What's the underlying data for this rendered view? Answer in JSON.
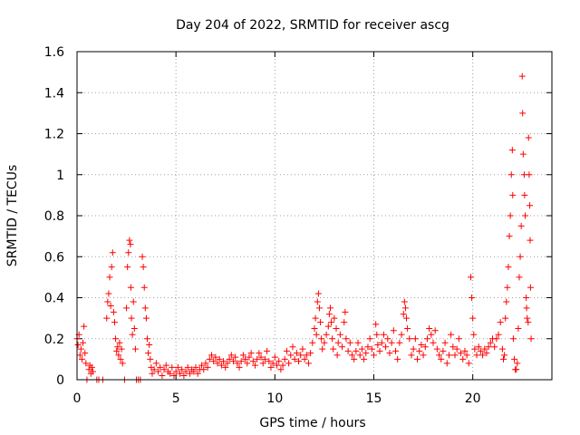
{
  "chart_data": {
    "type": "scatter",
    "title": "Day 204 of 2022, SRMTID for receiver ascg",
    "xlabel": "GPS time / hours",
    "ylabel": "SRMTID / TECUs",
    "xlim": [
      0,
      24
    ],
    "ylim": [
      0,
      1.6
    ],
    "xticks": [
      0,
      5,
      10,
      15,
      20
    ],
    "xtick_labels": [
      "0",
      "5",
      "10",
      "15",
      "20"
    ],
    "yticks": [
      0,
      0.2,
      0.4,
      0.6,
      0.8,
      1,
      1.2,
      1.4,
      1.6
    ],
    "ytick_labels": [
      "0",
      "0.2",
      "0.4",
      "0.6",
      "0.8",
      "1",
      "1.2",
      "1.4",
      "1.6"
    ],
    "grid": true,
    "marker": "+",
    "series": [
      {
        "name": "SRMTID",
        "color": "#ff0000",
        "points": [
          [
            0.0,
            0.2
          ],
          [
            0.05,
            0.17
          ],
          [
            0.1,
            0.22
          ],
          [
            0.15,
            0.12
          ],
          [
            0.2,
            0.15
          ],
          [
            0.25,
            0.1
          ],
          [
            0.3,
            0.18
          ],
          [
            0.35,
            0.26
          ],
          [
            0.4,
            0.13
          ],
          [
            0.45,
            0.08
          ],
          [
            0.5,
            0.0
          ],
          [
            0.6,
            0.05
          ],
          [
            0.65,
            0.07
          ],
          [
            0.7,
            0.03
          ],
          [
            0.75,
            0.06
          ],
          [
            0.8,
            0.04
          ],
          [
            1.0,
            0.0
          ],
          [
            1.1,
            0.0
          ],
          [
            1.3,
            0.0
          ],
          [
            1.5,
            0.3
          ],
          [
            1.55,
            0.38
          ],
          [
            1.6,
            0.42
          ],
          [
            1.65,
            0.5
          ],
          [
            1.7,
            0.36
          ],
          [
            1.75,
            0.55
          ],
          [
            1.8,
            0.62
          ],
          [
            1.85,
            0.33
          ],
          [
            1.9,
            0.28
          ],
          [
            1.95,
            0.2
          ],
          [
            2.0,
            0.14
          ],
          [
            2.05,
            0.16
          ],
          [
            2.1,
            0.12
          ],
          [
            2.15,
            0.18
          ],
          [
            2.2,
            0.1
          ],
          [
            2.25,
            0.15
          ],
          [
            2.3,
            0.08
          ],
          [
            2.4,
            0.0
          ],
          [
            2.5,
            0.35
          ],
          [
            2.55,
            0.55
          ],
          [
            2.6,
            0.62
          ],
          [
            2.65,
            0.68
          ],
          [
            2.7,
            0.66
          ],
          [
            2.72,
            0.45
          ],
          [
            2.75,
            0.3
          ],
          [
            2.8,
            0.22
          ],
          [
            2.85,
            0.38
          ],
          [
            2.9,
            0.25
          ],
          [
            2.95,
            0.15
          ],
          [
            3.0,
            0.0
          ],
          [
            3.1,
            0.0
          ],
          [
            3.2,
            0.0
          ],
          [
            3.3,
            0.6
          ],
          [
            3.35,
            0.55
          ],
          [
            3.4,
            0.45
          ],
          [
            3.45,
            0.35
          ],
          [
            3.5,
            0.3
          ],
          [
            3.55,
            0.2
          ],
          [
            3.6,
            0.13
          ],
          [
            3.65,
            0.17
          ],
          [
            3.7,
            0.1
          ],
          [
            3.75,
            0.06
          ],
          [
            3.8,
            0.03
          ],
          [
            3.9,
            0.05
          ],
          [
            4.0,
            0.08
          ],
          [
            4.1,
            0.04
          ],
          [
            4.2,
            0.06
          ],
          [
            4.3,
            0.02
          ],
          [
            4.4,
            0.05
          ],
          [
            4.5,
            0.07
          ],
          [
            4.6,
            0.04
          ],
          [
            4.7,
            0.03
          ],
          [
            4.8,
            0.06
          ],
          [
            4.9,
            0.02
          ],
          [
            5.0,
            0.04
          ],
          [
            5.1,
            0.06
          ],
          [
            5.2,
            0.03
          ],
          [
            5.3,
            0.05
          ],
          [
            5.4,
            0.02
          ],
          [
            5.5,
            0.04
          ],
          [
            5.6,
            0.06
          ],
          [
            5.7,
            0.03
          ],
          [
            5.8,
            0.05
          ],
          [
            5.9,
            0.04
          ],
          [
            6.0,
            0.06
          ],
          [
            6.1,
            0.03
          ],
          [
            6.2,
            0.05
          ],
          [
            6.3,
            0.07
          ],
          [
            6.4,
            0.05
          ],
          [
            6.5,
            0.08
          ],
          [
            6.6,
            0.06
          ],
          [
            6.7,
            0.1
          ],
          [
            6.8,
            0.12
          ],
          [
            6.9,
            0.09
          ],
          [
            7.0,
            0.11
          ],
          [
            7.1,
            0.08
          ],
          [
            7.2,
            0.1
          ],
          [
            7.3,
            0.07
          ],
          [
            7.4,
            0.09
          ],
          [
            7.5,
            0.06
          ],
          [
            7.6,
            0.08
          ],
          [
            7.7,
            0.1
          ],
          [
            7.8,
            0.12
          ],
          [
            7.9,
            0.09
          ],
          [
            8.0,
            0.11
          ],
          [
            8.1,
            0.08
          ],
          [
            8.2,
            0.06
          ],
          [
            8.3,
            0.09
          ],
          [
            8.4,
            0.12
          ],
          [
            8.5,
            0.1
          ],
          [
            8.6,
            0.08
          ],
          [
            8.7,
            0.11
          ],
          [
            8.8,
            0.13
          ],
          [
            8.9,
            0.09
          ],
          [
            9.0,
            0.07
          ],
          [
            9.1,
            0.1
          ],
          [
            9.2,
            0.13
          ],
          [
            9.3,
            0.11
          ],
          [
            9.4,
            0.08
          ],
          [
            9.5,
            0.1
          ],
          [
            9.6,
            0.14
          ],
          [
            9.7,
            0.09
          ],
          [
            9.8,
            0.06
          ],
          [
            9.9,
            0.08
          ],
          [
            10.0,
            0.11
          ],
          [
            10.1,
            0.07
          ],
          [
            10.2,
            0.09
          ],
          [
            10.3,
            0.05
          ],
          [
            10.4,
            0.07
          ],
          [
            10.5,
            0.1
          ],
          [
            10.6,
            0.14
          ],
          [
            10.7,
            0.08
          ],
          [
            10.8,
            0.12
          ],
          [
            10.9,
            0.16
          ],
          [
            11.0,
            0.1
          ],
          [
            11.1,
            0.13
          ],
          [
            11.2,
            0.09
          ],
          [
            11.3,
            0.12
          ],
          [
            11.4,
            0.15
          ],
          [
            11.5,
            0.1
          ],
          [
            11.6,
            0.12
          ],
          [
            11.7,
            0.08
          ],
          [
            11.8,
            0.13
          ],
          [
            11.9,
            0.18
          ],
          [
            12.0,
            0.25
          ],
          [
            12.05,
            0.3
          ],
          [
            12.1,
            0.22
          ],
          [
            12.15,
            0.38
          ],
          [
            12.2,
            0.42
          ],
          [
            12.25,
            0.35
          ],
          [
            12.3,
            0.28
          ],
          [
            12.35,
            0.2
          ],
          [
            12.4,
            0.15
          ],
          [
            12.5,
            0.18
          ],
          [
            12.6,
            0.22
          ],
          [
            12.7,
            0.26
          ],
          [
            12.75,
            0.32
          ],
          [
            12.8,
            0.35
          ],
          [
            12.85,
            0.28
          ],
          [
            12.9,
            0.2
          ],
          [
            12.95,
            0.15
          ],
          [
            13.0,
            0.3
          ],
          [
            13.1,
            0.25
          ],
          [
            13.15,
            0.12
          ],
          [
            13.2,
            0.18
          ],
          [
            13.3,
            0.22
          ],
          [
            13.4,
            0.16
          ],
          [
            13.5,
            0.28
          ],
          [
            13.55,
            0.33
          ],
          [
            13.6,
            0.2
          ],
          [
            13.7,
            0.14
          ],
          [
            13.8,
            0.18
          ],
          [
            13.9,
            0.12
          ],
          [
            14.0,
            0.1
          ],
          [
            14.1,
            0.14
          ],
          [
            14.2,
            0.18
          ],
          [
            14.3,
            0.12
          ],
          [
            14.4,
            0.15
          ],
          [
            14.5,
            0.1
          ],
          [
            14.6,
            0.13
          ],
          [
            14.7,
            0.16
          ],
          [
            14.8,
            0.2
          ],
          [
            14.9,
            0.15
          ],
          [
            15.0,
            0.12
          ],
          [
            15.1,
            0.27
          ],
          [
            15.15,
            0.22
          ],
          [
            15.2,
            0.17
          ],
          [
            15.3,
            0.14
          ],
          [
            15.4,
            0.18
          ],
          [
            15.5,
            0.22
          ],
          [
            15.6,
            0.16
          ],
          [
            15.7,
            0.2
          ],
          [
            15.8,
            0.13
          ],
          [
            15.9,
            0.18
          ],
          [
            16.0,
            0.24
          ],
          [
            16.1,
            0.14
          ],
          [
            16.2,
            0.1
          ],
          [
            16.3,
            0.18
          ],
          [
            16.4,
            0.22
          ],
          [
            16.5,
            0.32
          ],
          [
            16.55,
            0.38
          ],
          [
            16.6,
            0.35
          ],
          [
            16.65,
            0.3
          ],
          [
            16.7,
            0.25
          ],
          [
            16.8,
            0.2
          ],
          [
            16.9,
            0.12
          ],
          [
            17.0,
            0.15
          ],
          [
            17.1,
            0.2
          ],
          [
            17.2,
            0.1
          ],
          [
            17.3,
            0.14
          ],
          [
            17.4,
            0.17
          ],
          [
            17.5,
            0.12
          ],
          [
            17.6,
            0.16
          ],
          [
            17.7,
            0.2
          ],
          [
            17.8,
            0.25
          ],
          [
            17.9,
            0.22
          ],
          [
            18.0,
            0.18
          ],
          [
            18.1,
            0.24
          ],
          [
            18.2,
            0.15
          ],
          [
            18.3,
            0.12
          ],
          [
            18.4,
            0.1
          ],
          [
            18.5,
            0.14
          ],
          [
            18.6,
            0.18
          ],
          [
            18.7,
            0.08
          ],
          [
            18.8,
            0.12
          ],
          [
            18.9,
            0.22
          ],
          [
            19.0,
            0.16
          ],
          [
            19.1,
            0.12
          ],
          [
            19.2,
            0.15
          ],
          [
            19.3,
            0.2
          ],
          [
            19.4,
            0.13
          ],
          [
            19.5,
            0.1
          ],
          [
            19.6,
            0.14
          ],
          [
            19.7,
            0.12
          ],
          [
            19.8,
            0.08
          ],
          [
            19.9,
            0.5
          ],
          [
            19.95,
            0.4
          ],
          [
            20.0,
            0.3
          ],
          [
            20.05,
            0.22
          ],
          [
            20.1,
            0.15
          ],
          [
            20.2,
            0.12
          ],
          [
            20.3,
            0.16
          ],
          [
            20.4,
            0.14
          ],
          [
            20.5,
            0.12
          ],
          [
            20.6,
            0.15
          ],
          [
            20.7,
            0.13
          ],
          [
            20.8,
            0.16
          ],
          [
            20.9,
            0.18
          ],
          [
            21.0,
            0.2
          ],
          [
            21.1,
            0.16
          ],
          [
            21.2,
            0.2
          ],
          [
            21.3,
            0.22
          ],
          [
            21.4,
            0.28
          ],
          [
            21.5,
            0.15
          ],
          [
            21.55,
            0.1
          ],
          [
            21.6,
            0.12
          ],
          [
            21.65,
            0.3
          ],
          [
            21.7,
            0.38
          ],
          [
            21.75,
            0.45
          ],
          [
            21.8,
            0.55
          ],
          [
            21.85,
            0.7
          ],
          [
            21.9,
            0.8
          ],
          [
            21.95,
            1.0
          ],
          [
            22.0,
            1.12
          ],
          [
            22.02,
            0.9
          ],
          [
            22.05,
            0.2
          ],
          [
            22.1,
            0.1
          ],
          [
            22.15,
            0.05
          ],
          [
            22.2,
            0.05
          ],
          [
            22.25,
            0.08
          ],
          [
            22.3,
            0.25
          ],
          [
            22.35,
            0.5
          ],
          [
            22.4,
            0.6
          ],
          [
            22.45,
            0.75
          ],
          [
            22.5,
            1.48
          ],
          [
            22.52,
            1.3
          ],
          [
            22.55,
            1.1
          ],
          [
            22.6,
            1.0
          ],
          [
            22.62,
            0.9
          ],
          [
            22.65,
            0.8
          ],
          [
            22.7,
            0.4
          ],
          [
            22.72,
            0.35
          ],
          [
            22.75,
            0.3
          ],
          [
            22.8,
            0.28
          ],
          [
            22.82,
            1.18
          ],
          [
            22.85,
            1.0
          ],
          [
            22.88,
            0.85
          ],
          [
            22.9,
            0.68
          ],
          [
            22.92,
            0.45
          ],
          [
            22.95,
            0.2
          ]
        ]
      }
    ]
  }
}
